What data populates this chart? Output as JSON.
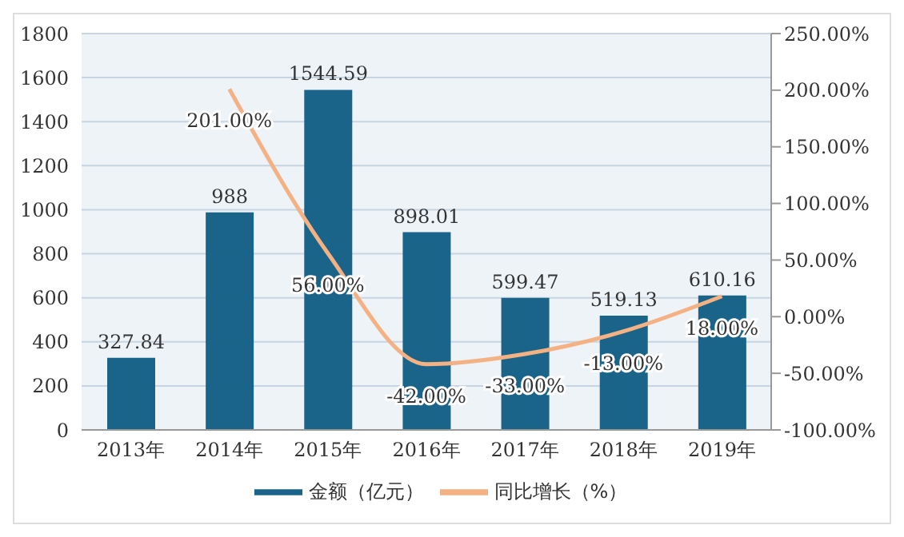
{
  "chart_data": {
    "type": "bar",
    "categories": [
      "2013年",
      "2014年",
      "2015年",
      "2016年",
      "2017年",
      "2018年",
      "2019年"
    ],
    "series": [
      {
        "name": "金额（亿元）",
        "color": "#1b6489",
        "values": [
          327.84,
          988,
          1544.59,
          898.01,
          599.47,
          519.13,
          610.16
        ],
        "value_labels": [
          "327.84",
          "988",
          "1544.59",
          "898.01",
          "599.47",
          "519.13",
          "610.16"
        ]
      },
      {
        "name": "同比增长（%）",
        "type": "line",
        "axis": "y2",
        "color": "#f4b183",
        "values": [
          null,
          201,
          56,
          -42,
          -33,
          -13,
          18
        ],
        "value_labels": [
          null,
          "201.00%",
          "56.00%",
          "-42.00%",
          "-33.00%",
          "-13.00%",
          "18.00%"
        ]
      }
    ],
    "ylim": [
      0,
      1800
    ],
    "yticks": [
      0,
      200,
      400,
      600,
      800,
      1000,
      1200,
      1400,
      1600,
      1800
    ],
    "y2lim": [
      -100,
      250
    ],
    "y2ticks": [
      {
        "value": -100,
        "label": "-100.00%"
      },
      {
        "value": -50,
        "label": "-50.00%"
      },
      {
        "value": 0,
        "label": "0.00%"
      },
      {
        "value": 50,
        "label": "50.00%"
      },
      {
        "value": 100,
        "label": "100.00%"
      },
      {
        "value": 150,
        "label": "150.00%"
      },
      {
        "value": 200,
        "label": "200.00%"
      },
      {
        "value": 250,
        "label": "250.00%"
      }
    ],
    "grid": "y",
    "legend": "bottom",
    "marker": "none"
  }
}
